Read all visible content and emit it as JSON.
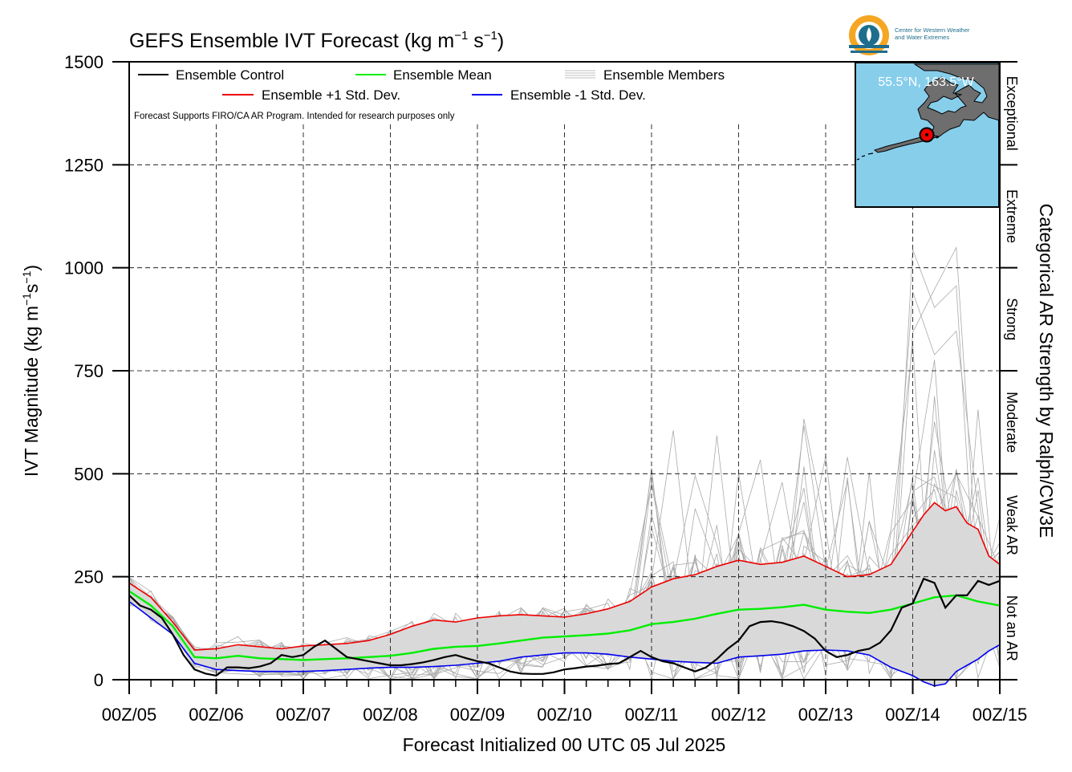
{
  "chart_data": {
    "type": "line",
    "title": "GEFS Ensemble IVT Forecast (kg m",
    "title_units": {
      "sup1": "−1",
      "mid": " s",
      "sup2": "−1",
      "close": ")"
    },
    "xlabel": "Forecast Initialized 00 UTC 05 Jul 2025",
    "ylabel": "IVT Magnitude (kg m",
    "ylabel_units": {
      "sup1": "−1",
      "mid": "s",
      "sup2": "−1",
      "close": ")"
    },
    "right_label": "Categorical AR Strength by Ralph/CW3E",
    "note": "Forecast Supports FIRO/CA AR Program. Intended for research purposes only",
    "ylim": [
      0,
      1500
    ],
    "yticks": [
      "0",
      "250",
      "500",
      "750",
      "1000",
      "1250",
      "1500"
    ],
    "xlim": [
      0,
      240
    ],
    "xtick_hours": [
      0,
      24,
      48,
      72,
      96,
      120,
      144,
      168,
      192,
      216,
      240
    ],
    "xtick_labels": [
      "00Z/05",
      "00Z/06",
      "00Z/07",
      "00Z/08",
      "00Z/09",
      "00Z/10",
      "00Z/11",
      "00Z/12",
      "00Z/13",
      "00Z/14",
      "00Z/15"
    ],
    "grid": true,
    "legend_position": "top-left",
    "legend": {
      "control": "Ensemble Control",
      "mean": "Ensemble Mean",
      "members": "Ensemble Members",
      "plus": "Ensemble +1 Std. Dev.",
      "minus": "Ensemble -1 Std. Dev."
    },
    "colors": {
      "control": "#000000",
      "mean": "#00ee00",
      "plus": "#ee0000",
      "minus": "#0000ee",
      "members": "#aaaaaa",
      "spread_fill": "#d9d9d9"
    },
    "categories": [
      {
        "label": "Not an AR",
        "from": 0,
        "to": 250
      },
      {
        "label": "Weak AR",
        "from": 250,
        "to": 500
      },
      {
        "label": "Moderate",
        "from": 500,
        "to": 750
      },
      {
        "label": "Strong",
        "from": 750,
        "to": 1000
      },
      {
        "label": "Extreme",
        "from": 1000,
        "to": 1250
      },
      {
        "label": "Exceptional",
        "from": 1250,
        "to": 1500
      }
    ],
    "inset": {
      "location": "55.5°N, 163.5°W",
      "lat": 55.5,
      "lon": -163.5
    },
    "series": [
      {
        "key": "control",
        "name": "Ensemble Control",
        "x": [
          0,
          3,
          6,
          9,
          12,
          15,
          18,
          21,
          24,
          27,
          30,
          33,
          36,
          39,
          42,
          45,
          48,
          51,
          54,
          57,
          60,
          63,
          66,
          69,
          72,
          75,
          78,
          81,
          84,
          87,
          90,
          93,
          96,
          99,
          102,
          105,
          108,
          111,
          114,
          117,
          120,
          123,
          126,
          129,
          132,
          135,
          138,
          141,
          144,
          147,
          150,
          153,
          156,
          159,
          162,
          165,
          168,
          171,
          174,
          177,
          180,
          183,
          186,
          189,
          192,
          195,
          198,
          201,
          204,
          207,
          210,
          213,
          216,
          219,
          222,
          225,
          228,
          231,
          234,
          237,
          240
        ],
        "y": [
          205,
          180,
          170,
          150,
          110,
          60,
          25,
          15,
          10,
          30,
          30,
          28,
          32,
          40,
          60,
          55,
          60,
          80,
          95,
          75,
          55,
          50,
          45,
          40,
          35,
          35,
          38,
          42,
          48,
          55,
          60,
          52,
          45,
          40,
          30,
          20,
          15,
          14,
          14,
          18,
          25,
          28,
          32,
          34,
          38,
          40,
          55,
          70,
          55,
          45,
          40,
          30,
          20,
          30,
          50,
          75,
          95,
          130,
          140,
          142,
          138,
          130,
          118,
          100,
          70,
          55,
          60,
          70,
          75,
          90,
          120,
          175,
          185,
          245,
          235,
          175,
          205,
          205,
          240,
          230,
          240
        ]
      },
      {
        "key": "mean",
        "name": "Ensemble Mean",
        "x": [
          0,
          6,
          12,
          18,
          24,
          30,
          36,
          42,
          48,
          54,
          60,
          66,
          72,
          78,
          84,
          90,
          96,
          102,
          108,
          114,
          120,
          126,
          132,
          138,
          144,
          150,
          156,
          162,
          168,
          174,
          180,
          186,
          192,
          198,
          204,
          210,
          216,
          222,
          228,
          234,
          240
        ],
        "y": [
          215,
          180,
          130,
          55,
          52,
          58,
          52,
          50,
          48,
          50,
          52,
          55,
          58,
          65,
          75,
          80,
          82,
          88,
          95,
          102,
          105,
          108,
          112,
          120,
          135,
          140,
          148,
          160,
          170,
          172,
          176,
          182,
          170,
          165,
          162,
          170,
          185,
          200,
          205,
          190,
          180
        ]
      },
      {
        "key": "plus",
        "name": "Ensemble +1 Std. Dev.",
        "x": [
          0,
          6,
          12,
          18,
          24,
          30,
          36,
          42,
          48,
          54,
          60,
          66,
          72,
          78,
          84,
          90,
          96,
          102,
          108,
          114,
          120,
          126,
          132,
          138,
          144,
          150,
          156,
          162,
          168,
          174,
          180,
          186,
          192,
          198,
          204,
          210,
          216,
          219,
          222,
          225,
          228,
          231,
          234,
          237,
          240
        ],
        "y": [
          235,
          200,
          140,
          72,
          75,
          85,
          80,
          75,
          82,
          85,
          88,
          95,
          110,
          130,
          145,
          140,
          150,
          155,
          158,
          155,
          152,
          160,
          172,
          190,
          225,
          245,
          255,
          275,
          290,
          280,
          285,
          300,
          275,
          250,
          255,
          280,
          360,
          400,
          430,
          410,
          420,
          380,
          365,
          300,
          280
        ]
      },
      {
        "key": "minus",
        "name": "Ensemble -1 Std. Dev.",
        "x": [
          0,
          6,
          12,
          18,
          24,
          30,
          36,
          42,
          48,
          54,
          60,
          66,
          72,
          78,
          84,
          90,
          96,
          102,
          108,
          114,
          120,
          126,
          132,
          138,
          144,
          150,
          156,
          162,
          168,
          174,
          180,
          186,
          192,
          198,
          204,
          210,
          216,
          219,
          222,
          225,
          228,
          231,
          234,
          237,
          240
        ],
        "y": [
          190,
          150,
          110,
          40,
          25,
          22,
          20,
          20,
          20,
          22,
          25,
          28,
          30,
          30,
          32,
          35,
          40,
          45,
          55,
          60,
          65,
          65,
          62,
          55,
          50,
          45,
          42,
          40,
          55,
          58,
          62,
          70,
          72,
          70,
          60,
          30,
          10,
          -5,
          -15,
          -10,
          20,
          35,
          50,
          70,
          85
        ]
      }
    ]
  }
}
